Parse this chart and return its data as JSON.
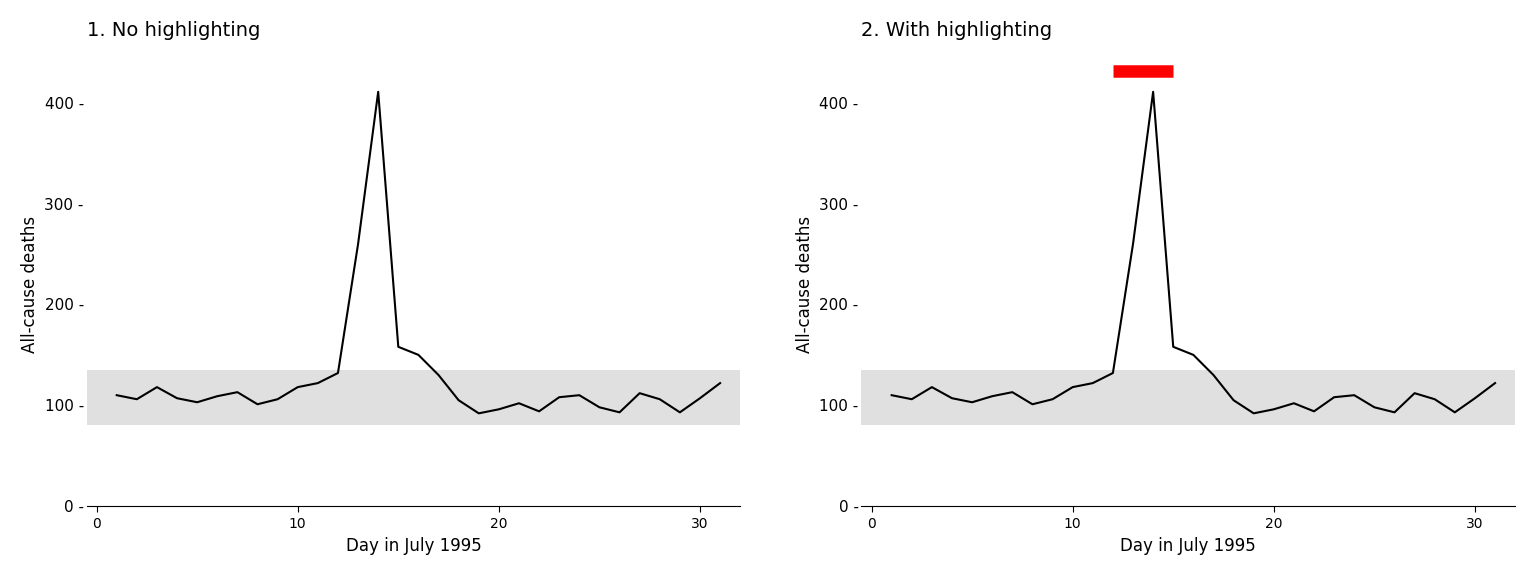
{
  "title1": "1. No highlighting",
  "title2": "2. With highlighting",
  "xlabel": "Day in July 1995",
  "ylabel": "All-cause deaths",
  "days": [
    1,
    2,
    3,
    4,
    5,
    6,
    7,
    8,
    9,
    10,
    11,
    12,
    13,
    14,
    15,
    16,
    17,
    18,
    19,
    20,
    21,
    22,
    23,
    24,
    25,
    26,
    27,
    28,
    29,
    30,
    31
  ],
  "deaths": [
    110,
    106,
    118,
    107,
    103,
    109,
    113,
    101,
    106,
    118,
    122,
    132,
    260,
    411,
    158,
    150,
    130,
    105,
    92,
    96,
    102,
    94,
    108,
    110,
    98,
    93,
    112,
    106,
    93,
    107,
    122
  ],
  "line_color": "#000000",
  "line_width": 1.5,
  "background_color": "#ffffff",
  "rect_color": "#e0e0e0",
  "rect_ymin": 80,
  "rect_ymax": 135,
  "ylim": [
    -10,
    450
  ],
  "ylim_display": [
    0,
    440
  ],
  "xlim": [
    -0.5,
    32
  ],
  "yticks": [
    0,
    100,
    200,
    300,
    400
  ],
  "xticks": [
    0,
    10,
    20,
    30
  ],
  "heat_wave_start": 12,
  "heat_wave_end": 15,
  "heat_wave_y": 432,
  "heat_wave_color": "#ff0000",
  "heat_wave_lw": 9,
  "title_fontsize": 14,
  "label_fontsize": 12,
  "tick_fontsize": 11,
  "figure_width": 15.36,
  "figure_height": 5.76,
  "dpi": 100
}
